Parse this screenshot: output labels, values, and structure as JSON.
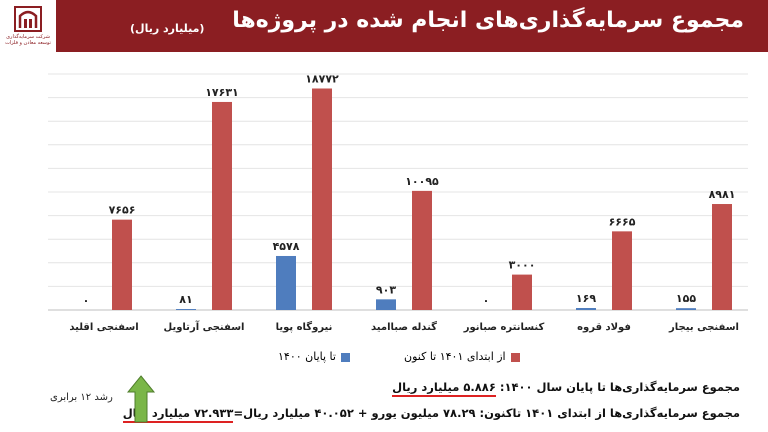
{
  "header": {
    "title": "مجموع سرمایه‌گذاری‌های انجام شده در پروژه‌ها",
    "subtitle": "(میلیارد ریال)",
    "logo_text": "شرکت سرمایه‌گذاری توسعه معادن و فلزات"
  },
  "chart_data": {
    "type": "bar",
    "categories": [
      "اسفنجی بیجار",
      "فولاد قروه",
      "کنسانتره صبانور",
      "گندله صباامید",
      "نیروگاه پویا",
      "اسفنجی آرتاویل",
      "اسفنجی اقلید"
    ],
    "series": [
      {
        "name": "تا پایان ۱۴۰۰",
        "color": "#4f7dbe",
        "values": [
          155,
          169,
          0,
          903,
          4578,
          81,
          0
        ],
        "labels": [
          "۱۵۵",
          "۱۶۹",
          "۰",
          "۹۰۳",
          "۴۵۷۸",
          "۸۱",
          "۰"
        ]
      },
      {
        "name": "از ابتدای ۱۴۰۱ تا کنون",
        "color": "#c0504d",
        "values": [
          8981,
          6665,
          3000,
          10095,
          18772,
          17631,
          7656
        ],
        "labels": [
          "۸۹۸۱",
          "۶۶۶۵",
          "۳۰۰۰",
          "۱۰۰۹۵",
          "۱۸۷۷۲",
          "۱۷۶۳۱",
          "۷۶۵۶"
        ]
      }
    ],
    "ylim": [
      0,
      20000
    ],
    "grid": true,
    "legend": "bottom"
  },
  "notes": {
    "line1_label": "مجموع سرمایه‌گذاری‌ها تا پایان سال ۱۴۰۰:",
    "line1_value": "۵.۸۸۶ میلیارد ریال",
    "line2_label": "مجموع سرمایه‌گذاری‌ها از ابتدای ۱۴۰۱ تاکنون:",
    "line2_mid": "۷۸.۲۹ میلیون یورو + ۴۰.۰۵۲ میلیارد ریال=",
    "line2_value": "۷۲.۹۳۳ میلیارد ریال",
    "growth": "رشد ۱۲ برابری"
  }
}
